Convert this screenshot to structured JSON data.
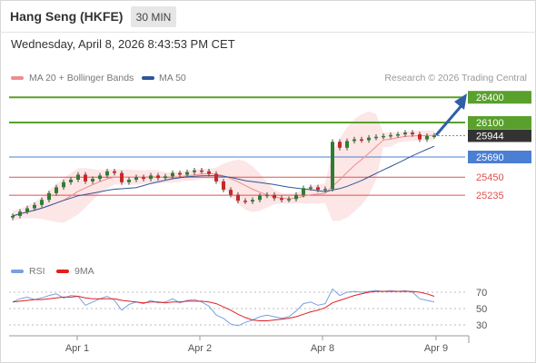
{
  "header": {
    "title": "Hang Seng (HKFE)",
    "timeframe": "30 MIN"
  },
  "timestamp": "Wednesday, April 8, 2026 8:43:53 PM CET",
  "legend": {
    "ma20": "MA 20 + Bollinger Bands",
    "ma50": "MA 50",
    "rsi": "RSI",
    "ma9": "9MA"
  },
  "credit": "Research © 2026 Trading Central",
  "colors": {
    "resistance": "#5aa02c",
    "pivot": "#4a7fd4",
    "support": "#e05050",
    "ma20": "#f08c8c",
    "ma50": "#2f5597",
    "bollinger": "#fde0e0",
    "bull": "#2e7d32",
    "bear": "#c62828",
    "rsi": "#7aa0e0",
    "rsi_ma": "#e02020",
    "arrow": "#2e5fa8",
    "last_price_bg": "#333333"
  },
  "chart_data": {
    "type": "line",
    "title": "Hang Seng (HKFE) 30 MIN",
    "x_ticks": [
      "Apr 1",
      "Apr 2",
      "Apr 8",
      "Apr 9"
    ],
    "levels": [
      {
        "label": "26400",
        "value": 26400,
        "kind": "resistance"
      },
      {
        "label": "26100",
        "value": 26100,
        "kind": "resistance"
      },
      {
        "label": "25944",
        "value": 25944,
        "kind": "last"
      },
      {
        "label": "25690",
        "value": 25690,
        "kind": "pivot"
      },
      {
        "label": "25450",
        "value": 25450,
        "kind": "support"
      },
      {
        "label": "25235",
        "value": 25235,
        "kind": "support"
      }
    ],
    "price_series": [
      24990,
      25040,
      25080,
      25120,
      25180,
      25260,
      25330,
      25390,
      25420,
      25480,
      25400,
      25430,
      25470,
      25520,
      25500,
      25390,
      25420,
      25450,
      25430,
      25470,
      25440,
      25460,
      25500,
      25480,
      25510,
      25530,
      25520,
      25490,
      25400,
      25300,
      25240,
      25170,
      25160,
      25180,
      25230,
      25240,
      25200,
      25180,
      25190,
      25240,
      25320,
      25330,
      25300,
      25310,
      25870,
      25800,
      25880,
      25900,
      25890,
      25920,
      25930,
      25940,
      25950,
      25960,
      25980,
      25960,
      25900,
      25940,
      25944
    ],
    "rsi": {
      "ylim": [
        20,
        80
      ],
      "ticks": [
        70,
        50,
        30
      ],
      "values": [
        58,
        62,
        64,
        61,
        63,
        66,
        68,
        63,
        66,
        65,
        54,
        58,
        62,
        65,
        60,
        48,
        55,
        58,
        56,
        60,
        57,
        58,
        62,
        57,
        60,
        61,
        58,
        53,
        42,
        38,
        31,
        29,
        33,
        36,
        40,
        42,
        40,
        38,
        40,
        47,
        56,
        58,
        54,
        56,
        74,
        66,
        70,
        71,
        70,
        71,
        72,
        71,
        72,
        71,
        72,
        70,
        62,
        60,
        58
      ],
      "ma9": [
        58,
        59,
        60,
        61,
        61,
        62,
        63,
        64,
        64,
        65,
        63,
        62,
        62,
        62,
        62,
        60,
        59,
        58,
        57,
        58,
        58,
        57,
        58,
        58,
        59,
        59,
        59,
        58,
        56,
        52,
        48,
        43,
        39,
        36,
        35,
        35,
        36,
        37,
        38,
        40,
        43,
        46,
        48,
        51,
        57,
        60,
        63,
        66,
        68,
        70,
        71,
        71,
        71,
        71,
        71,
        71,
        70,
        68,
        65
      ]
    }
  }
}
